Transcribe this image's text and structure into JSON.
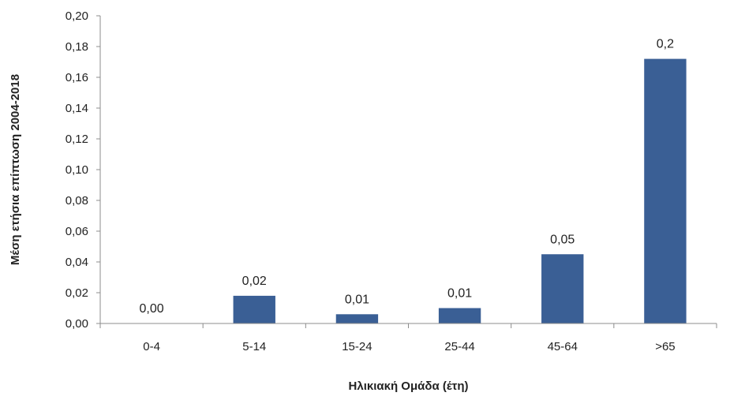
{
  "chart_data": {
    "type": "bar",
    "title": "",
    "xlabel": "Ηλικιακή Ομάδα (έτη)",
    "ylabel": "Μέση ετήσια επίπτωση 2004-2018",
    "categories": [
      "0-4",
      "5-14",
      "15-24",
      "25-44",
      "45-64",
      ">65"
    ],
    "values": [
      0.0,
      0.018,
      0.006,
      0.01,
      0.045,
      0.172
    ],
    "data_labels": [
      "0,00",
      "0,02",
      "0,01",
      "0,01",
      "0,05",
      "0,2"
    ],
    "ylim": [
      0,
      0.2
    ],
    "yticks": [
      0,
      0.02,
      0.04,
      0.06,
      0.08,
      0.1,
      0.12,
      0.14,
      0.16,
      0.18,
      0.2
    ],
    "ytick_labels": [
      "0,00",
      "0,02",
      "0,04",
      "0,06",
      "0,08",
      "0,10",
      "0,12",
      "0,14",
      "0,16",
      "0,18",
      "0,20"
    ],
    "grid": false,
    "legend": "none",
    "bar_color": "#3a5f95",
    "axis_color": "#8c8c8c"
  }
}
